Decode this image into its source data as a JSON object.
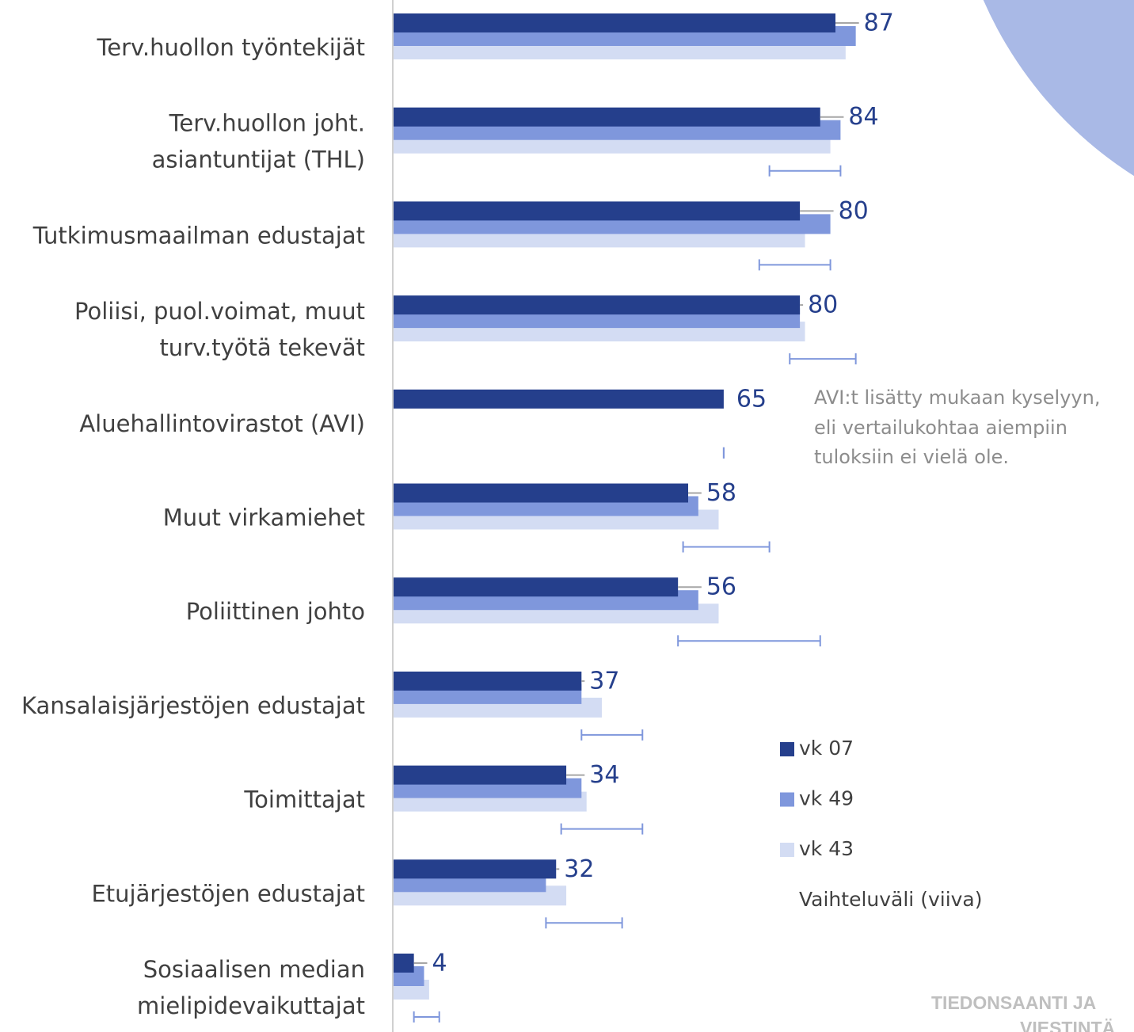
{
  "chart_data": {
    "type": "bar",
    "orientation": "horizontal",
    "categories": [
      [
        "Terv.huollon työntekijät"
      ],
      [
        "Terv.huollon  joht.",
        "asiantuntijat (THL)"
      ],
      [
        "Tutkimusmaailman edustajat"
      ],
      [
        "Poliisi, puol.voimat,  muut",
        "turv.työtä tekevät"
      ],
      [
        "Aluehallintovirastot (AVI)"
      ],
      [
        "Muut virkamiehet"
      ],
      [
        "Poliittinen johto"
      ],
      [
        "Kansalaisjärjestöjen edustajat"
      ],
      [
        "Toimittajat"
      ],
      [
        "Etujärjestöjen edustajat"
      ],
      [
        "Sosiaalisen median",
        "mielipidevaikuttajat"
      ]
    ],
    "series": [
      {
        "name": "vk 07",
        "color": "#253f8c",
        "values": [
          87,
          84,
          80,
          80,
          65,
          58,
          56,
          37,
          34,
          32,
          4
        ]
      },
      {
        "name": "vk 49",
        "color": "#7f97dc",
        "values": [
          91,
          88,
          86,
          80,
          null,
          60,
          60,
          37,
          37,
          30,
          6
        ]
      },
      {
        "name": "vk 43",
        "color": "#d3dcf3",
        "values": [
          89,
          86,
          81,
          81,
          null,
          64,
          64,
          41,
          38,
          34,
          7
        ]
      }
    ],
    "range_name": "Vaihteluväli (viiva)",
    "range_color": "#7f97dc",
    "ranges": [
      null,
      [
        74,
        88
      ],
      [
        72,
        86
      ],
      [
        78,
        91
      ],
      [
        65,
        65
      ],
      [
        57,
        74
      ],
      [
        56,
        84
      ],
      [
        37,
        49
      ],
      [
        33,
        49
      ],
      [
        30,
        45
      ],
      [
        4,
        9
      ]
    ],
    "xlim": [
      0,
      145
    ],
    "annotation": [
      "AVI:t lisätty mukaan kyselyyn,",
      "eli vertailukohtaa aiempiin",
      "tuloksiin ei vielä ole."
    ],
    "footer": [
      "TIEDONSAANTI JA",
      "VIESTINTÄ"
    ]
  }
}
